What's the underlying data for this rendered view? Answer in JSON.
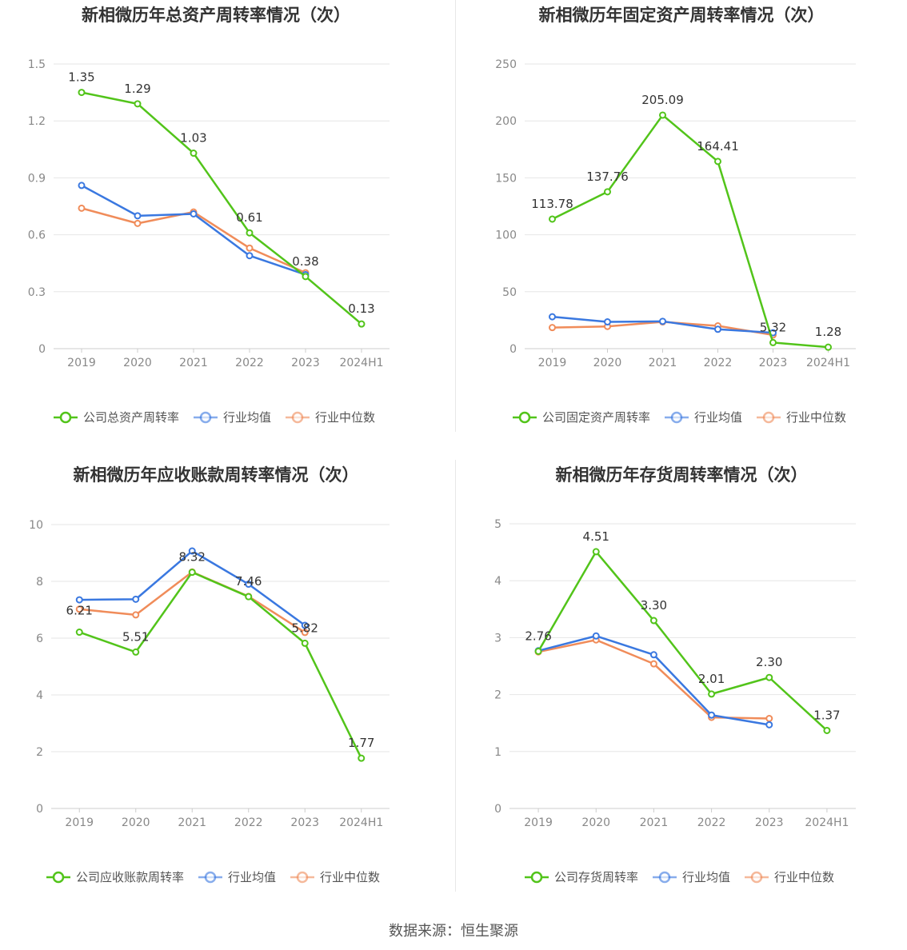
{
  "source_text": "数据来源：恒生聚源",
  "colors": {
    "company": "#52c41a",
    "avg": "#3a78e0",
    "median": "#f08c5a",
    "grid": "#e6e6e6",
    "axis": "#cccccc"
  },
  "chart_data": [
    {
      "type": "line",
      "title": "新相微历年总资产周转率情况（次）",
      "categories": [
        "2019",
        "2020",
        "2021",
        "2022",
        "2023",
        "2024H1"
      ],
      "ylim": [
        0,
        1.5
      ],
      "yticks": [
        "0",
        "0.3",
        "0.6",
        "0.9",
        "1.2",
        "1.5"
      ],
      "grid": true,
      "legend_position": "bottom",
      "series": [
        {
          "name": "公司总资产周转率",
          "key": "company",
          "values": [
            1.35,
            1.29,
            1.03,
            0.61,
            0.38,
            0.13
          ],
          "labels": [
            "1.35",
            "1.29",
            "1.03",
            "0.61",
            "0.38",
            "0.13"
          ]
        },
        {
          "name": "行业均值",
          "key": "avg",
          "values": [
            0.86,
            0.7,
            0.71,
            0.49,
            0.39,
            null
          ]
        },
        {
          "name": "行业中位数",
          "key": "median",
          "values": [
            0.74,
            0.66,
            0.72,
            0.53,
            0.4,
            null
          ]
        }
      ]
    },
    {
      "type": "line",
      "title": "新相微历年固定资产周转率情况（次）",
      "categories": [
        "2019",
        "2020",
        "2021",
        "2022",
        "2023",
        "2024H1"
      ],
      "ylim": [
        0,
        250
      ],
      "yticks": [
        "0",
        "50",
        "100",
        "150",
        "200",
        "250"
      ],
      "grid": true,
      "legend_position": "bottom",
      "series": [
        {
          "name": "公司固定资产周转率",
          "key": "company",
          "values": [
            113.78,
            137.76,
            205.09,
            164.41,
            5.32,
            1.28
          ],
          "labels": [
            "113.78",
            "137.76",
            "205.09",
            "164.41",
            "5.32",
            "1.28"
          ]
        },
        {
          "name": "行业均值",
          "key": "avg",
          "values": [
            28,
            23.5,
            24,
            17,
            14,
            null
          ]
        },
        {
          "name": "行业中位数",
          "key": "median",
          "values": [
            18.5,
            19.5,
            23.5,
            20,
            12,
            null
          ]
        }
      ]
    },
    {
      "type": "line",
      "title": "新相微历年应收账款周转率情况（次）",
      "categories": [
        "2019",
        "2020",
        "2021",
        "2022",
        "2023",
        "2024H1"
      ],
      "ylim": [
        0,
        10
      ],
      "yticks": [
        "0",
        "2",
        "4",
        "6",
        "8",
        "10"
      ],
      "grid": true,
      "legend_position": "bottom",
      "series": [
        {
          "name": "公司应收账款周转率",
          "key": "company",
          "values": [
            6.21,
            5.51,
            8.32,
            7.46,
            5.82,
            1.77
          ],
          "labels": [
            "6.21",
            "5.51",
            "8.32",
            "7.46",
            "5.82",
            "1.77"
          ]
        },
        {
          "name": "行业均值",
          "key": "avg",
          "values": [
            7.35,
            7.37,
            9.07,
            7.9,
            6.45,
            null
          ]
        },
        {
          "name": "行业中位数",
          "key": "median",
          "values": [
            7.02,
            6.82,
            8.33,
            7.47,
            6.2,
            null
          ]
        }
      ]
    },
    {
      "type": "line",
      "title": "新相微历年存货周转率情况（次）",
      "categories": [
        "2019",
        "2020",
        "2021",
        "2022",
        "2023",
        "2024H1"
      ],
      "ylim": [
        0,
        5
      ],
      "yticks": [
        "0",
        "1",
        "2",
        "3",
        "4",
        "5"
      ],
      "grid": true,
      "legend_position": "bottom",
      "series": [
        {
          "name": "公司存货周转率",
          "key": "company",
          "values": [
            2.76,
            4.51,
            3.3,
            2.01,
            2.3,
            1.37
          ],
          "labels": [
            "2.76",
            "4.51",
            "3.30",
            "2.01",
            "2.30",
            "1.37"
          ]
        },
        {
          "name": "行业均值",
          "key": "avg",
          "values": [
            2.77,
            3.03,
            2.7,
            1.64,
            1.47,
            null
          ]
        },
        {
          "name": "行业中位数",
          "key": "median",
          "values": [
            2.75,
            2.96,
            2.54,
            1.6,
            1.58,
            null
          ]
        }
      ]
    }
  ]
}
